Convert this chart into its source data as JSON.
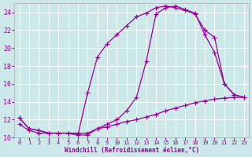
{
  "xlabel": "Windchill (Refroidissement éolien,°C)",
  "bg_color": "#cce8e8",
  "line_color": "#990099",
  "xlim": [
    -0.5,
    23.5
  ],
  "ylim": [
    10,
    25
  ],
  "xticks": [
    0,
    1,
    2,
    3,
    4,
    5,
    6,
    7,
    8,
    9,
    10,
    11,
    12,
    13,
    14,
    15,
    16,
    17,
    18,
    19,
    20,
    21,
    22,
    23
  ],
  "yticks": [
    10,
    12,
    14,
    16,
    18,
    20,
    22,
    24
  ],
  "curve1_x": [
    0,
    1,
    2,
    3,
    4,
    5,
    6,
    7,
    8,
    9,
    10,
    11,
    12,
    13,
    14,
    15,
    16,
    17,
    18,
    19,
    20,
    21,
    22,
    23
  ],
  "curve1_y": [
    12.2,
    11.0,
    10.8,
    10.5,
    10.5,
    10.5,
    10.3,
    15.0,
    19.0,
    20.5,
    21.5,
    22.5,
    23.5,
    23.9,
    24.5,
    24.7,
    24.5,
    24.2,
    23.8,
    22.0,
    21.2,
    16.0,
    14.8,
    14.5
  ],
  "curve2_x": [
    0,
    1,
    2,
    3,
    4,
    5,
    6,
    7,
    8,
    9,
    10,
    11,
    12,
    13,
    14,
    15,
    16,
    17,
    18,
    19,
    20,
    21,
    22,
    23
  ],
  "curve2_y": [
    12.2,
    11.0,
    10.8,
    10.5,
    10.5,
    10.5,
    10.3,
    10.3,
    11.0,
    11.5,
    12.0,
    13.0,
    14.5,
    18.5,
    23.8,
    24.5,
    24.7,
    24.3,
    23.9,
    21.5,
    19.5,
    16.0,
    14.8,
    14.5
  ],
  "curve3_x": [
    0,
    1,
    2,
    3,
    4,
    5,
    6,
    7,
    8,
    9,
    10,
    11,
    12,
    13,
    14,
    15,
    16,
    17,
    18,
    19,
    20,
    21,
    22,
    23
  ],
  "curve3_y": [
    11.5,
    10.8,
    10.5,
    10.5,
    10.5,
    10.5,
    10.5,
    10.5,
    11.0,
    11.2,
    11.5,
    11.8,
    12.0,
    12.3,
    12.6,
    13.0,
    13.3,
    13.6,
    13.9,
    14.1,
    14.3,
    14.4,
    14.5,
    14.5
  ],
  "marker": "+",
  "marker_size": 4,
  "linewidth": 0.9
}
